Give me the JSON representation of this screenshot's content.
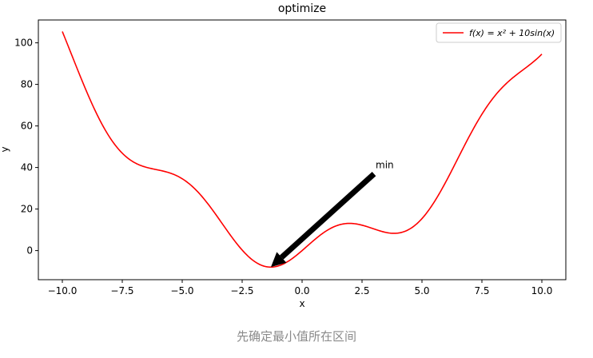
{
  "chart_data": {
    "type": "line",
    "title": "optimize",
    "xlabel": "x",
    "ylabel": "y",
    "xlim": [
      -11.0,
      11.0
    ],
    "ylim": [
      -14,
      111
    ],
    "xticks": [
      -10.0,
      -7.5,
      -5.0,
      -2.5,
      0.0,
      2.5,
      5.0,
      7.5,
      10.0
    ],
    "xtick_labels": [
      "−10.0",
      "−7.5",
      "−5.0",
      "−2.5",
      "0.0",
      "2.5",
      "5.0",
      "7.5",
      "10.0"
    ],
    "yticks": [
      0,
      20,
      40,
      60,
      80,
      100
    ],
    "ytick_labels": [
      "0",
      "20",
      "40",
      "60",
      "80",
      "100"
    ],
    "grid": false,
    "legend_position": "top-right",
    "series": [
      {
        "name": "f(x) = x² + 10sin(x)",
        "color": "#ff0000",
        "function": "x^2 + 10*sin(x)",
        "x_range": [
          -10,
          10
        ]
      }
    ],
    "annotations": [
      {
        "text": "min",
        "xy": [
          -1.3,
          -7.9
        ],
        "xytext": [
          3.0,
          40.0
        ],
        "arrow": true
      }
    ]
  },
  "caption": "先确定最小值所在区间"
}
